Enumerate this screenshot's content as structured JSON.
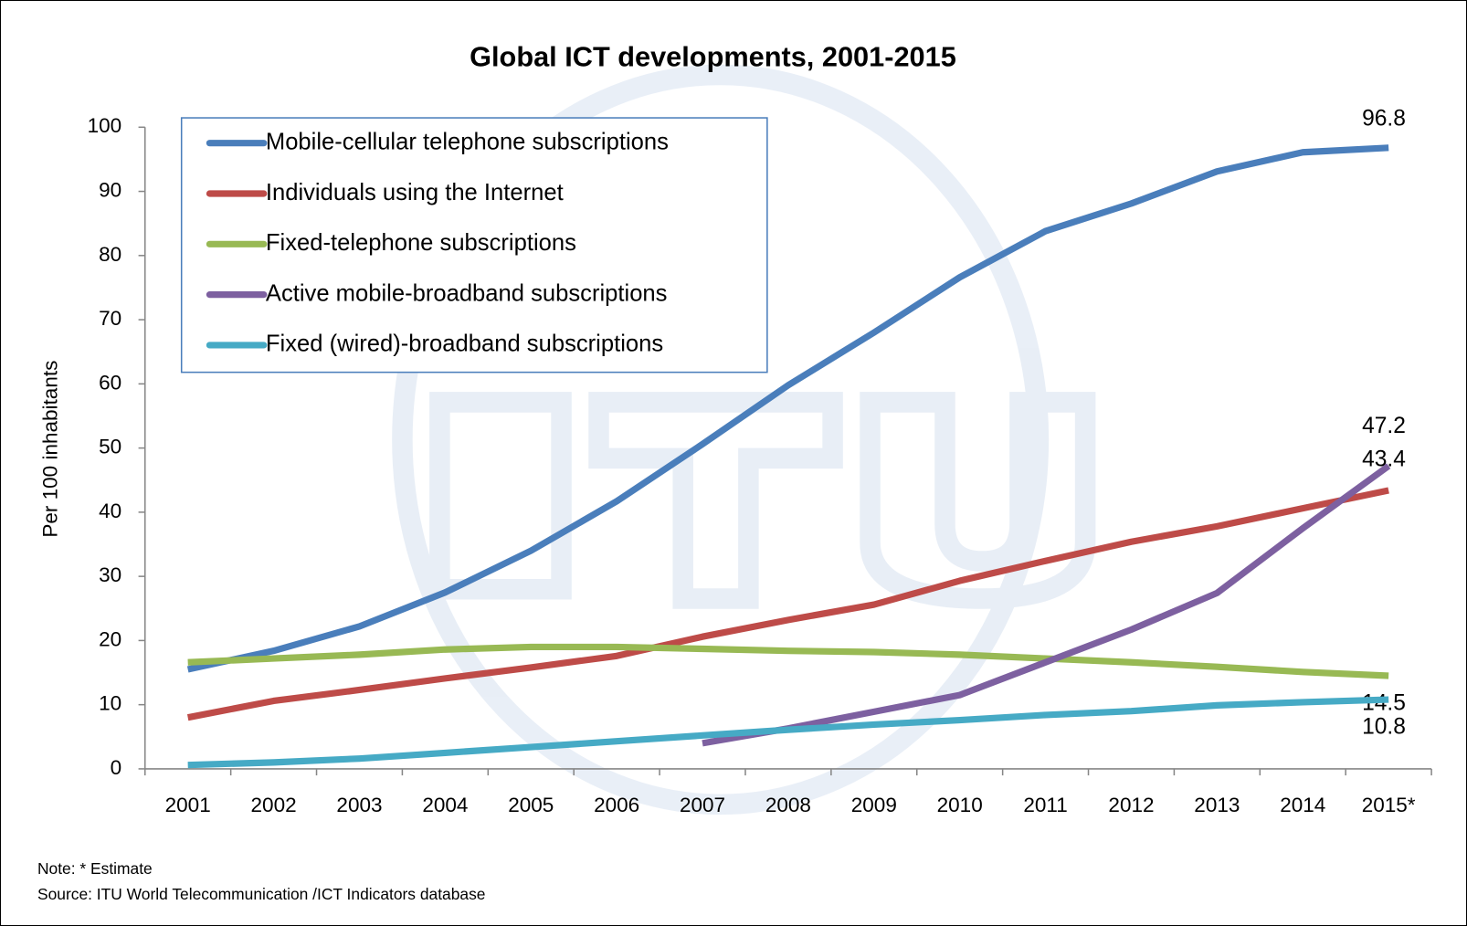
{
  "chart_data": {
    "type": "line",
    "title": "Global ICT developments, 2001-2015",
    "y_label": "Per 100 inhabitants",
    "categories": [
      "2001",
      "2002",
      "2003",
      "2004",
      "2005",
      "2006",
      "2007",
      "2008",
      "2009",
      "2010",
      "2011",
      "2012",
      "2013",
      "2014",
      "2015*"
    ],
    "ylim": [
      0,
      100
    ],
    "yticks": [
      0,
      10,
      20,
      30,
      40,
      50,
      60,
      70,
      80,
      90,
      100
    ],
    "grid": false,
    "legend": "top-left",
    "series": [
      {
        "name": "Mobile-cellular telephone subscriptions",
        "color": "#4a7ebb",
        "values": [
          15.5,
          18.4,
          22.2,
          27.5,
          34.0,
          41.7,
          50.6,
          59.8,
          68.0,
          76.6,
          83.8,
          88.1,
          93.1,
          96.1,
          96.8
        ]
      },
      {
        "name": "Individuals using the Internet",
        "color": "#be4b48",
        "values": [
          8.0,
          10.6,
          12.3,
          14.1,
          15.8,
          17.6,
          20.6,
          23.2,
          25.6,
          29.3,
          32.4,
          35.4,
          37.8,
          40.6,
          43.4
        ]
      },
      {
        "name": "Fixed-telephone subscriptions",
        "color": "#98b954",
        "values": [
          16.6,
          17.2,
          17.8,
          18.6,
          19.0,
          19.0,
          18.7,
          18.4,
          18.2,
          17.8,
          17.2,
          16.6,
          15.9,
          15.1,
          14.5
        ]
      },
      {
        "name": "Active mobile-broadband subscriptions",
        "color": "#7d60a0",
        "values": [
          null,
          null,
          null,
          null,
          null,
          null,
          4.0,
          6.3,
          8.9,
          11.5,
          16.6,
          21.7,
          27.4,
          37.5,
          47.2
        ]
      },
      {
        "name": "Fixed (wired)-broadband subscriptions",
        "color": "#46aac5",
        "values": [
          0.6,
          1.0,
          1.6,
          2.5,
          3.4,
          4.3,
          5.2,
          6.1,
          6.9,
          7.6,
          8.4,
          9.0,
          9.9,
          10.4,
          10.8
        ]
      }
    ],
    "notes": [
      "Note: * Estimate",
      "Source:  ITU World Telecommunication /ICT Indicators database"
    ]
  }
}
